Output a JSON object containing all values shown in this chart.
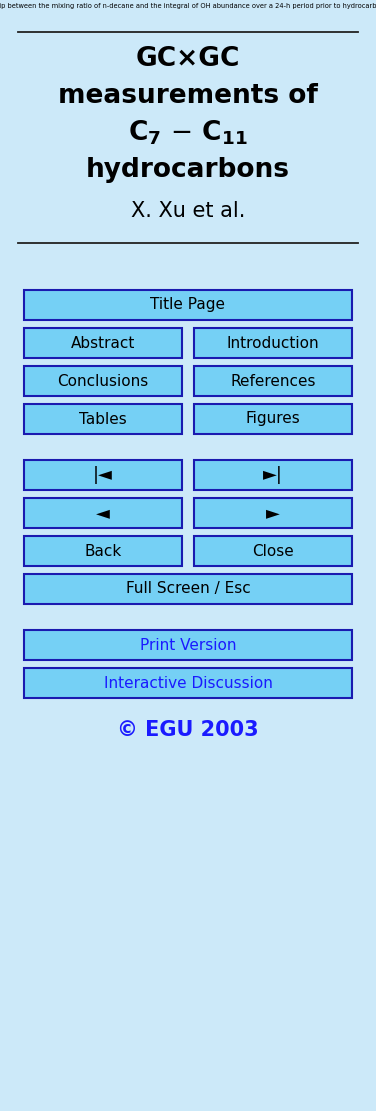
{
  "bg_color": "#cce9f9",
  "button_fill": "#75d0f5",
  "button_edge": "#1a1ab0",
  "text_color_black": "#000000",
  "text_color_blue": "#1a1aff",
  "copyright": "© EGU 2003",
  "buttons_pair": [
    [
      "Abstract",
      "Introduction"
    ],
    [
      "Conclusions",
      "References"
    ],
    [
      "Tables",
      "Figures"
    ],
    [
      "|◄",
      "►|"
    ],
    [
      "◄",
      "►"
    ],
    [
      "Back",
      "Close"
    ]
  ]
}
